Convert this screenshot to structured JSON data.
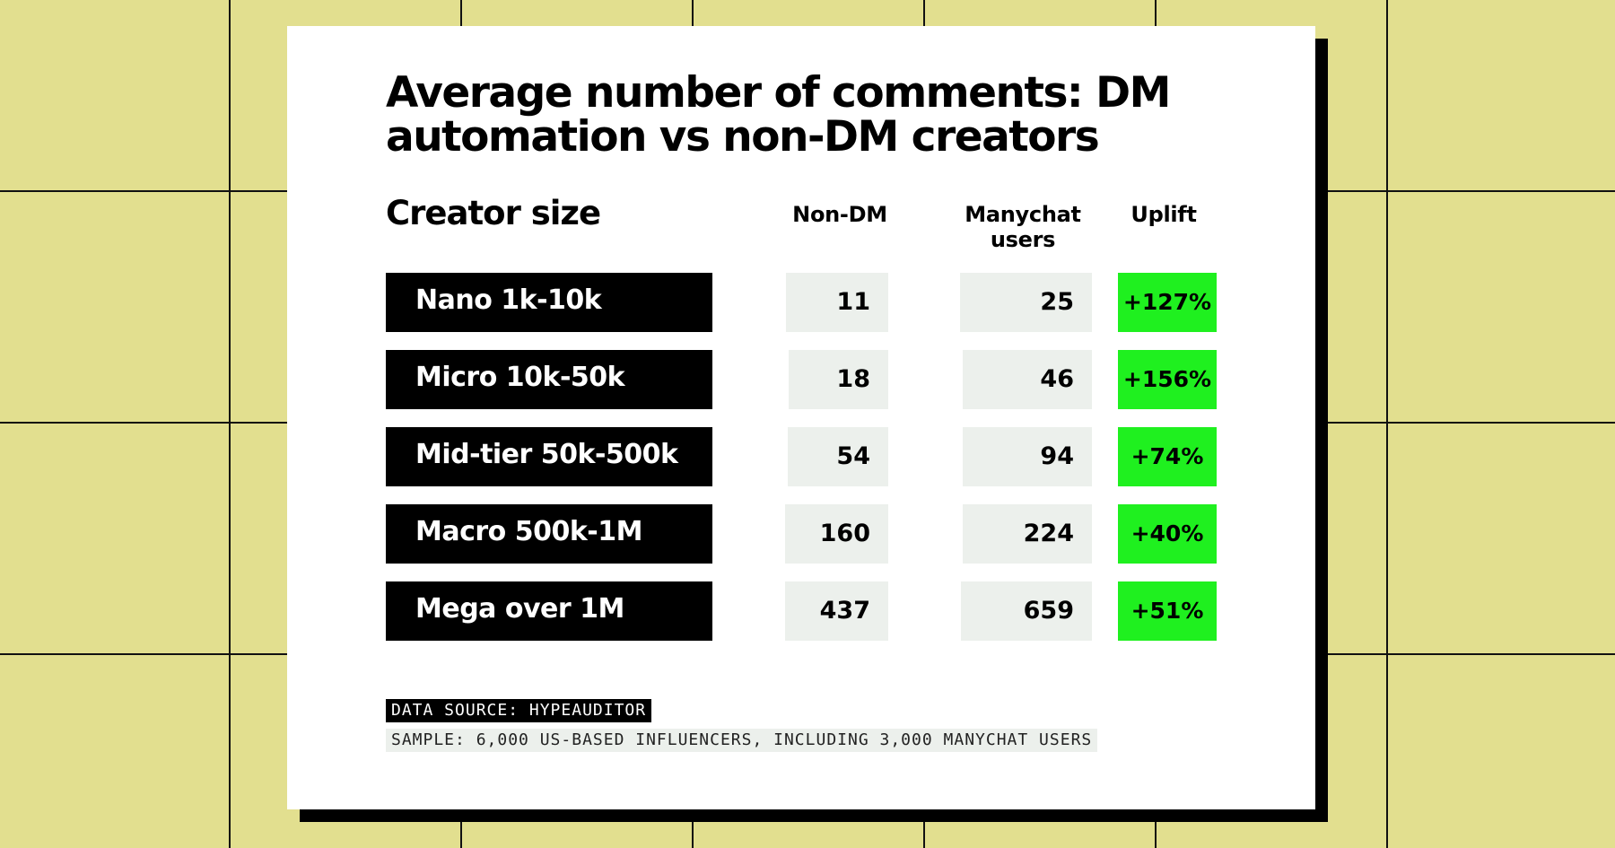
{
  "chart_data": {
    "type": "table",
    "title": "Average number of comments: DM automation vs non-DM creators",
    "columns": [
      "Creator size",
      "Non-DM",
      "Manychat users",
      "Uplift"
    ],
    "rows": [
      {
        "label": "Nano 1k-10k",
        "non_dm": "11",
        "manychat": "25",
        "uplift": "+127%"
      },
      {
        "label": "Micro 10k-50k",
        "non_dm": "18",
        "manychat": "46",
        "uplift": "+156%"
      },
      {
        "label": "Mid-tier 50k-500k",
        "non_dm": "54",
        "manychat": "94",
        "uplift": "+74%"
      },
      {
        "label": "Macro 500k-1M",
        "non_dm": "160",
        "manychat": "224",
        "uplift": "+40%"
      },
      {
        "label": "Mega over 1M",
        "non_dm": "437",
        "manychat": "659",
        "uplift": "+51%"
      }
    ]
  },
  "notes": {
    "source": "DATA SOURCE: HYPEAUDITOR",
    "sample": "SAMPLE: 6,000 US-BASED INFLUENCERS, INCLUDING 3,000 MANYCHAT USERS"
  },
  "colors": {
    "background": "#e2df8f",
    "label_bg": "#000000",
    "value_bg": "#ecf0ec",
    "uplift_bg": "#1ff01f"
  }
}
